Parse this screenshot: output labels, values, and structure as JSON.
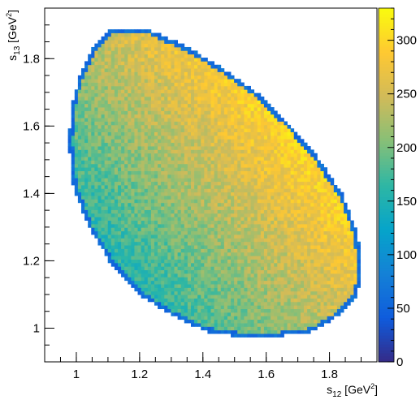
{
  "chart_data": {
    "type": "heatmap",
    "title": "",
    "xlabel": {
      "base": "s",
      "sub": "12",
      "unit_open": " [GeV",
      "sup": "2",
      "unit_close": "]"
    },
    "ylabel": {
      "base": "s",
      "sub": "13",
      "unit_open": " [GeV",
      "sup": "2",
      "unit_close": "]"
    },
    "xlim": [
      0.9,
      1.95
    ],
    "ylim": [
      0.9,
      1.95
    ],
    "x_ticks": [
      "1",
      "1.2",
      "1.4",
      "1.6",
      "1.8"
    ],
    "y_ticks": [
      "1",
      "1.2",
      "1.4",
      "1.6",
      "1.8"
    ],
    "x_tick_values": [
      1.0,
      1.2,
      1.4,
      1.6,
      1.8
    ],
    "y_tick_values": [
      1.0,
      1.2,
      1.4,
      1.6,
      1.8
    ],
    "bins": {
      "nx": 100,
      "ny": 100
    },
    "region": {
      "description": "kinematically allowed Dalitz region (tilted ellipse)",
      "s12_range": [
        0.975,
        1.905
      ],
      "s13_range": [
        0.975,
        1.895
      ],
      "boundary_points": [
        [
          1.11,
          1.89
        ],
        [
          1.22,
          1.89
        ],
        [
          1.34,
          1.84
        ],
        [
          1.45,
          1.78
        ],
        [
          1.57,
          1.7
        ],
        [
          1.68,
          1.6
        ],
        [
          1.76,
          1.51
        ],
        [
          1.84,
          1.4
        ],
        [
          1.89,
          1.28
        ],
        [
          1.9,
          1.18
        ],
        [
          1.89,
          1.1
        ],
        [
          1.83,
          1.04
        ],
        [
          1.75,
          0.99
        ],
        [
          1.63,
          0.975
        ],
        [
          1.52,
          0.975
        ],
        [
          1.41,
          0.99
        ],
        [
          1.3,
          1.04
        ],
        [
          1.2,
          1.1
        ],
        [
          1.11,
          1.19
        ],
        [
          1.04,
          1.3
        ],
        [
          0.99,
          1.42
        ],
        [
          0.975,
          1.55
        ],
        [
          0.985,
          1.66
        ],
        [
          1.01,
          1.75
        ],
        [
          1.05,
          1.83
        ]
      ]
    },
    "density_model": {
      "low_corner": [
        1.0,
        1.0
      ],
      "high_corner": [
        1.75,
        1.65
      ],
      "value_at_low": 110,
      "value_at_high": 320,
      "edge_value": 60
    },
    "colorbar": {
      "min": 0,
      "max": 330,
      "ticks": [
        "0",
        "50",
        "100",
        "150",
        "200",
        "250",
        "300"
      ],
      "tick_values": [
        0,
        50,
        100,
        150,
        200,
        250,
        300
      ],
      "palette": [
        "#352a87",
        "#0f5cdd",
        "#1481d6",
        "#06a4ca",
        "#2eb7a4",
        "#87bf77",
        "#d1bb59",
        "#fec832",
        "#f9fb0e"
      ]
    },
    "grid": false,
    "legend": "none"
  }
}
